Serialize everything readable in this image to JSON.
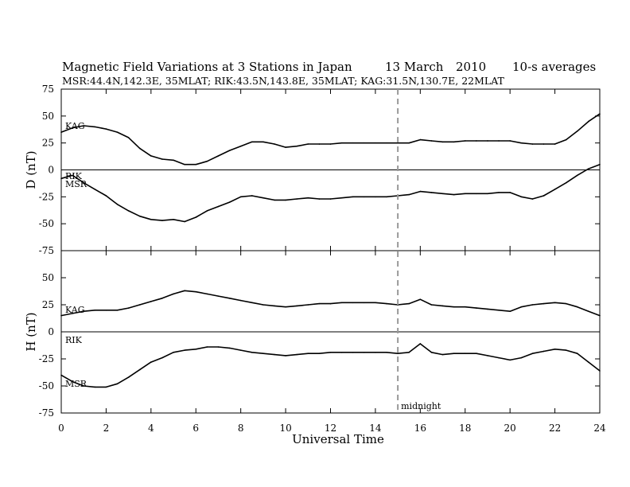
{
  "chart_data": {
    "type": "line",
    "title": "Magnetic Field Variations at 3 Stations in Japan",
    "date": "13  March",
    "year": "2010",
    "averaging": "10-s averages",
    "subtitle": "MSR:44.4N,142.3E, 35MLAT;  RIK:43.5N,143.8E, 35MLAT;  KAG:31.5N,130.7E, 22MLAT",
    "xlabel": "Universal Time",
    "xlim": [
      0,
      24
    ],
    "xticks": [
      "0",
      "2",
      "4",
      "6",
      "8",
      "10",
      "12",
      "14",
      "16",
      "18",
      "20",
      "22",
      "24"
    ],
    "annotation": {
      "text": "midnight",
      "x": 15
    },
    "line_color": "#000000",
    "marker_color": "#999999",
    "panels": [
      {
        "id": "D",
        "ylabel": "D (nT)",
        "ylim": [
          -75,
          75
        ],
        "yticks": [
          "75",
          "50",
          "25",
          "0",
          "-25",
          "-50",
          "-75"
        ],
        "series": [
          {
            "name": "KAG",
            "x": [
              0,
              0.5,
              1,
              1.5,
              2,
              2.5,
              3,
              3.5,
              4,
              4.5,
              5,
              5.5,
              6,
              6.5,
              7,
              7.5,
              8,
              8.5,
              9,
              9.5,
              10,
              10.5,
              11,
              11.5,
              12,
              12.5,
              13,
              13.5,
              14,
              14.5,
              15,
              15.5,
              16,
              16.5,
              17,
              17.5,
              18,
              18.5,
              19,
              19.5,
              20,
              20.5,
              21,
              21.5,
              22,
              22.5,
              23,
              23.5,
              24
            ],
            "y": [
              35,
              39,
              41,
              40,
              38,
              35,
              30,
              20,
              13,
              10,
              9,
              5,
              5,
              8,
              13,
              18,
              22,
              26,
              26,
              24,
              21,
              22,
              24,
              24,
              24,
              25,
              25,
              25,
              25,
              25,
              25,
              25,
              28,
              27,
              26,
              26,
              27,
              27,
              27,
              27,
              27,
              25,
              24,
              24,
              24,
              28,
              36,
              45,
              52
            ]
          },
          {
            "name": "RIK",
            "x": [
              0
            ],
            "y": [
              -5
            ]
          },
          {
            "name": "MSR",
            "x": [
              0,
              0.5,
              1,
              1.5,
              2,
              2.5,
              3,
              3.5,
              4,
              4.5,
              5,
              5.5,
              6,
              6.5,
              7,
              7.5,
              8,
              8.5,
              9,
              9.5,
              10,
              10.5,
              11,
              11.5,
              12,
              12.5,
              13,
              13.5,
              14,
              14.5,
              15,
              15.5,
              16,
              16.5,
              17,
              17.5,
              18,
              18.5,
              19,
              19.5,
              20,
              20.5,
              21,
              21.5,
              22,
              22.5,
              23,
              23.5,
              24
            ],
            "y": [
              -8,
              -5,
              -12,
              -18,
              -24,
              -32,
              -38,
              -43,
              -46,
              -47,
              -46,
              -48,
              -44,
              -38,
              -34,
              -30,
              -25,
              -24,
              -26,
              -28,
              -28,
              -27,
              -26,
              -27,
              -27,
              -26,
              -25,
              -25,
              -25,
              -25,
              -24,
              -23,
              -20,
              -21,
              -22,
              -23,
              -22,
              -22,
              -22,
              -21,
              -21,
              -25,
              -27,
              -24,
              -18,
              -12,
              -5,
              1,
              5
            ]
          }
        ]
      },
      {
        "id": "H",
        "ylabel": "H (nT)",
        "ylim": [
          -75,
          75
        ],
        "yticks": [
          "75",
          "50",
          "25",
          "0",
          "-25",
          "-50",
          "-75"
        ],
        "series": [
          {
            "name": "KAG",
            "x": [
              0,
              0.5,
              1,
              1.5,
              2,
              2.5,
              3,
              3.5,
              4,
              4.5,
              5,
              5.5,
              6,
              6.5,
              7,
              7.5,
              8,
              8.5,
              9,
              9.5,
              10,
              10.5,
              11,
              11.5,
              12,
              12.5,
              13,
              13.5,
              14,
              14.5,
              15,
              15.5,
              16,
              16.5,
              17,
              17.5,
              18,
              18.5,
              19,
              19.5,
              20,
              20.5,
              21,
              21.5,
              22,
              22.5,
              23,
              23.5,
              24
            ],
            "y": [
              15,
              17,
              19,
              20,
              20,
              20,
              22,
              25,
              28,
              31,
              35,
              38,
              37,
              35,
              33,
              31,
              29,
              27,
              25,
              24,
              23,
              24,
              25,
              26,
              26,
              27,
              27,
              27,
              27,
              26,
              25,
              26,
              30,
              25,
              24,
              23,
              23,
              22,
              21,
              20,
              19,
              23,
              25,
              26,
              27,
              26,
              23,
              19,
              15
            ]
          },
          {
            "name": "RIK",
            "x": [
              0
            ],
            "y": [
              -5
            ]
          },
          {
            "name": "MSR",
            "x": [
              0,
              0.5,
              1,
              1.5,
              2,
              2.5,
              3,
              3.5,
              4,
              4.5,
              5,
              5.5,
              6,
              6.5,
              7,
              7.5,
              8,
              8.5,
              9,
              9.5,
              10,
              10.5,
              11,
              11.5,
              12,
              12.5,
              13,
              13.5,
              14,
              14.5,
              15,
              15.5,
              16,
              16.5,
              17,
              17.5,
              18,
              18.5,
              19,
              19.5,
              20,
              20.5,
              21,
              21.5,
              22,
              22.5,
              23,
              23.5,
              24
            ],
            "y": [
              -40,
              -46,
              -50,
              -51,
              -51,
              -48,
              -42,
              -35,
              -28,
              -24,
              -19,
              -17,
              -16,
              -14,
              -14,
              -15,
              -17,
              -19,
              -20,
              -21,
              -22,
              -21,
              -20,
              -20,
              -19,
              -19,
              -19,
              -19,
              -19,
              -19,
              -20,
              -19,
              -11,
              -19,
              -21,
              -20,
              -20,
              -20,
              -22,
              -24,
              -26,
              -24,
              -20,
              -18,
              -16,
              -17,
              -20,
              -28,
              -36
            ]
          }
        ]
      }
    ]
  }
}
